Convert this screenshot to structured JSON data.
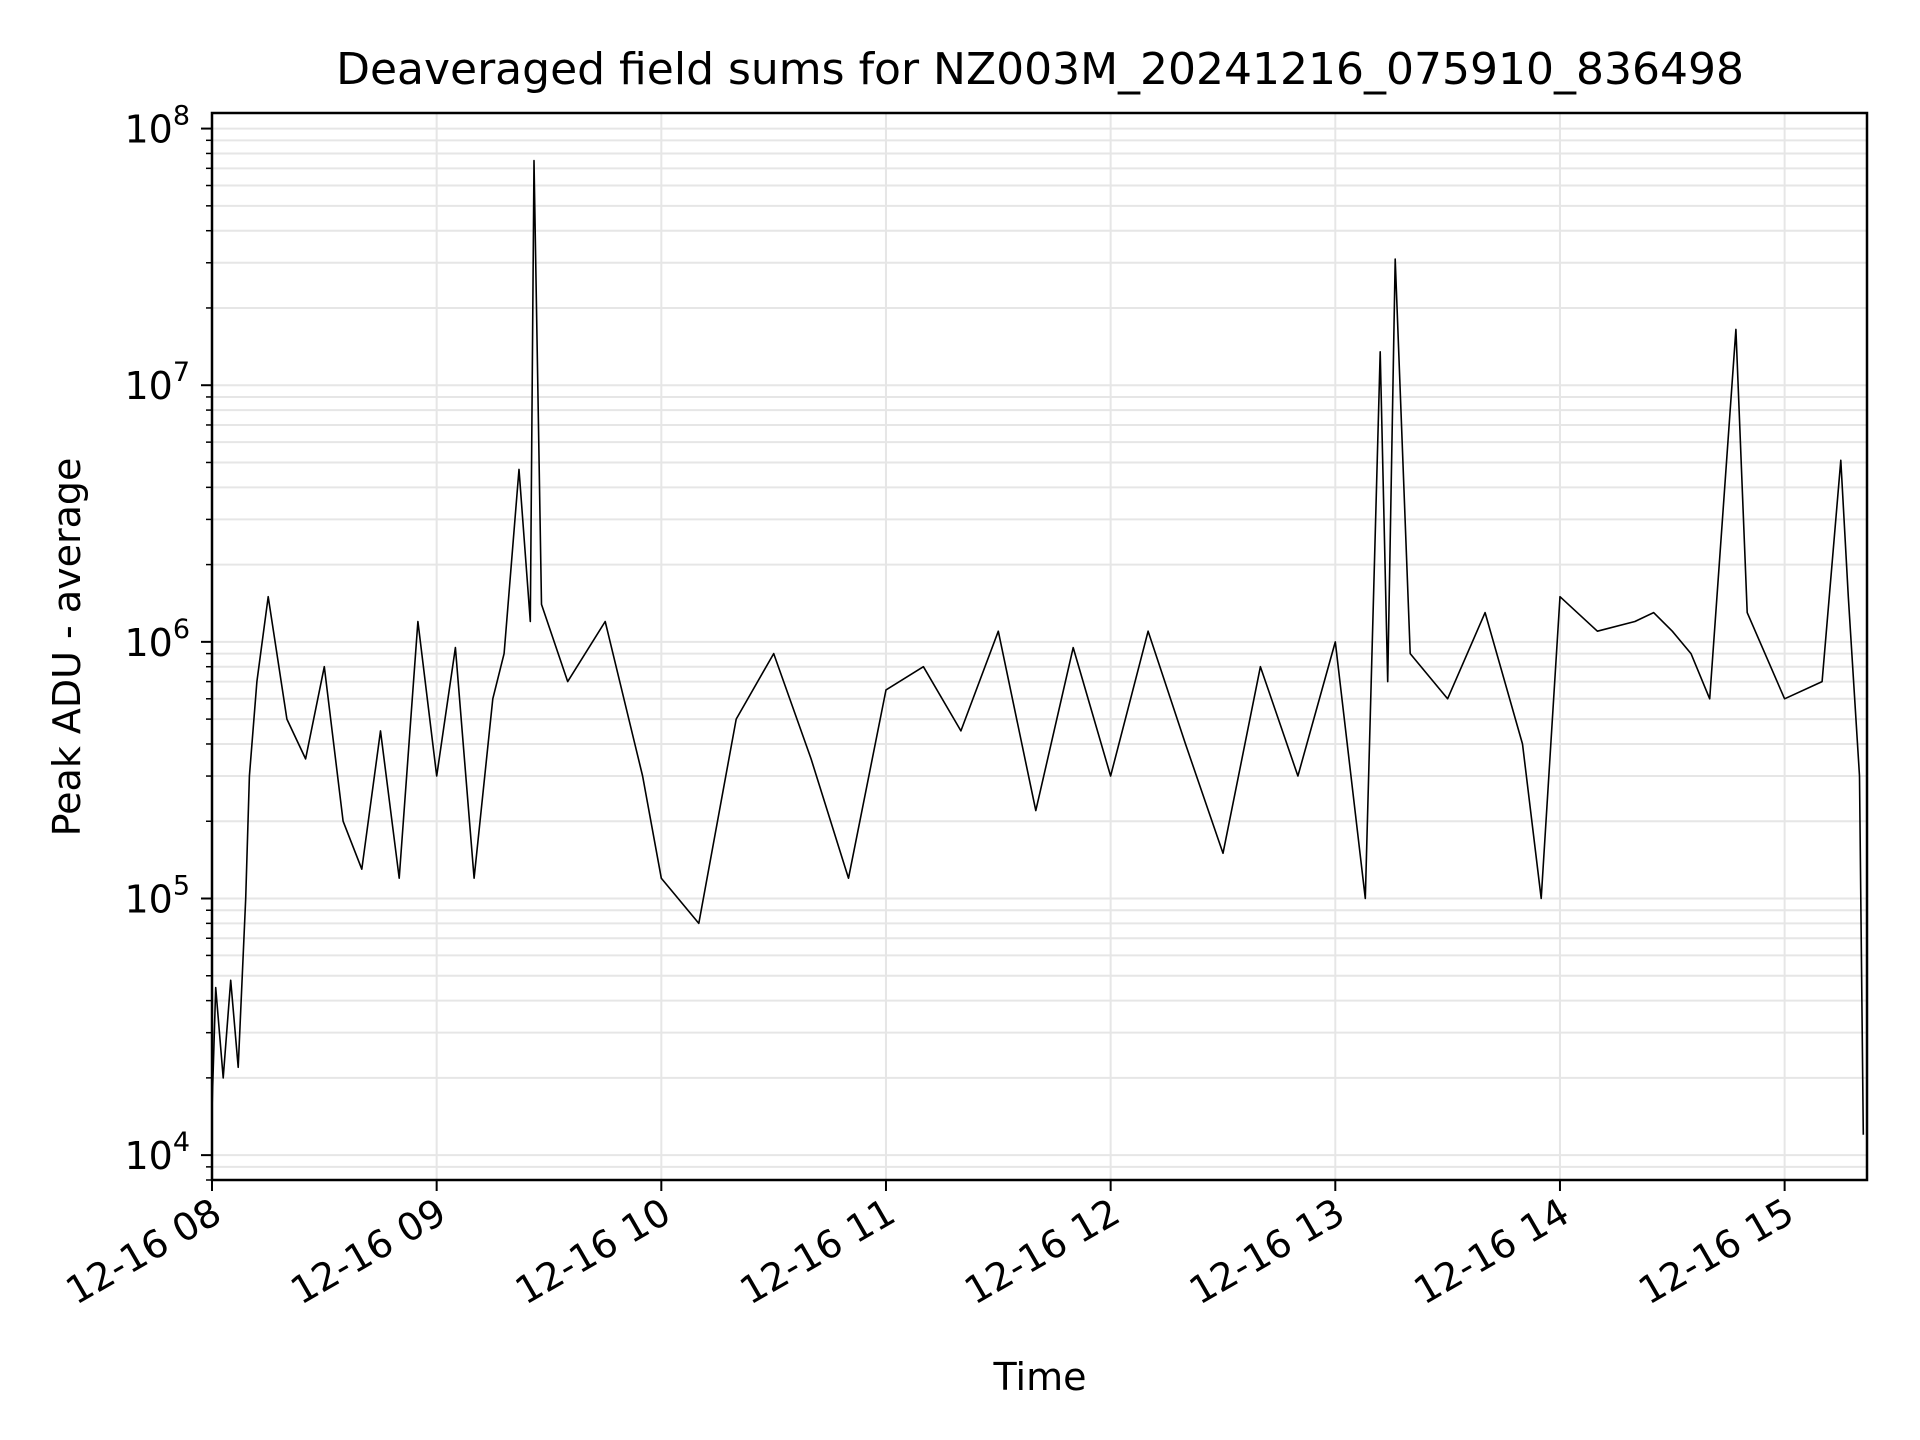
{
  "chart_data": {
    "type": "line",
    "title": "Deaveraged field sums for NZ003M_20241216_075910_836498",
    "xlabel": "Time",
    "ylabel": "Peak ADU - average",
    "yscale": "log",
    "ylim": [
      8000,
      115000000
    ],
    "xlim": [
      "2024-12-16 08:00",
      "2024-12-16 15:22"
    ],
    "grid": true,
    "line_color": "#000000",
    "grid_color": "#e6e6e6",
    "x_ticks": [
      "12-16 08",
      "12-16 09",
      "12-16 10",
      "12-16 11",
      "12-16 12",
      "12-16 13",
      "12-16 14",
      "12-16 15"
    ],
    "y_ticks": [
      {
        "value": 10000,
        "base": "10",
        "exp": "4"
      },
      {
        "value": 100000,
        "base": "10",
        "exp": "5"
      },
      {
        "value": 1000000,
        "base": "10",
        "exp": "6"
      },
      {
        "value": 10000000,
        "base": "10",
        "exp": "7"
      },
      {
        "value": 100000000,
        "base": "10",
        "exp": "8"
      }
    ],
    "series": [
      {
        "x": [
          "2024-12-16 08:00",
          "2024-12-16 08:01",
          "2024-12-16 08:03",
          "2024-12-16 08:05",
          "2024-12-16 08:07",
          "2024-12-16 08:09",
          "2024-12-16 08:10",
          "2024-12-16 08:12",
          "2024-12-16 08:15",
          "2024-12-16 08:20",
          "2024-12-16 08:25",
          "2024-12-16 08:30",
          "2024-12-16 08:35",
          "2024-12-16 08:40",
          "2024-12-16 08:45",
          "2024-12-16 08:50",
          "2024-12-16 08:55",
          "2024-12-16 09:00",
          "2024-12-16 09:05",
          "2024-12-16 09:10",
          "2024-12-16 09:15",
          "2024-12-16 09:18",
          "2024-12-16 09:22",
          "2024-12-16 09:25",
          "2024-12-16 09:26",
          "2024-12-16 09:28",
          "2024-12-16 09:35",
          "2024-12-16 09:45",
          "2024-12-16 09:55",
          "2024-12-16 10:00",
          "2024-12-16 10:10",
          "2024-12-16 10:20",
          "2024-12-16 10:30",
          "2024-12-16 10:40",
          "2024-12-16 10:50",
          "2024-12-16 11:00",
          "2024-12-16 11:10",
          "2024-12-16 11:20",
          "2024-12-16 11:30",
          "2024-12-16 11:40",
          "2024-12-16 11:50",
          "2024-12-16 12:00",
          "2024-12-16 12:10",
          "2024-12-16 12:20",
          "2024-12-16 12:30",
          "2024-12-16 12:40",
          "2024-12-16 12:50",
          "2024-12-16 13:00",
          "2024-12-16 13:08",
          "2024-12-16 13:12",
          "2024-12-16 13:14",
          "2024-12-16 13:16",
          "2024-12-16 13:20",
          "2024-12-16 13:30",
          "2024-12-16 13:40",
          "2024-12-16 13:50",
          "2024-12-16 13:55",
          "2024-12-16 14:00",
          "2024-12-16 14:10",
          "2024-12-16 14:20",
          "2024-12-16 14:25",
          "2024-12-16 14:30",
          "2024-12-16 14:35",
          "2024-12-16 14:40",
          "2024-12-16 14:43",
          "2024-12-16 14:47",
          "2024-12-16 14:50",
          "2024-12-16 15:00",
          "2024-12-16 15:10",
          "2024-12-16 15:15",
          "2024-12-16 15:17",
          "2024-12-16 15:20",
          "2024-12-16 15:21"
        ],
        "y": [
          15000,
          45000,
          20000,
          48000,
          22000,
          100000,
          300000,
          700000,
          1500000,
          500000,
          350000,
          800000,
          200000,
          130000,
          450000,
          120000,
          1200000,
          300000,
          950000,
          120000,
          600000,
          900000,
          4700000,
          1200000,
          75000000,
          1400000,
          700000,
          1200000,
          300000,
          120000,
          80000,
          500000,
          900000,
          350000,
          120000,
          650000,
          800000,
          450000,
          1100000,
          220000,
          950000,
          300000,
          1100000,
          400000,
          150000,
          800000,
          300000,
          1000000,
          100000,
          13500000,
          700000,
          31000000,
          900000,
          600000,
          1300000,
          400000,
          100000,
          1500000,
          1100000,
          1200000,
          1300000,
          1100000,
          900000,
          600000,
          2500000,
          16500000,
          1300000,
          600000,
          700000,
          5100000,
          1500000,
          300000,
          12000
        ]
      }
    ]
  }
}
